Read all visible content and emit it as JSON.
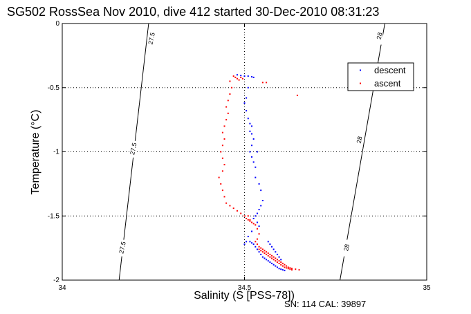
{
  "footer": "SN: 114  CAL: 39897",
  "chart_data": {
    "type": "scatter",
    "title": "SG502 RossSea Nov 2010, dive 412 started 30-Dec-2010 08:31:23",
    "xlabel": "Salinity (S [PSS-78])",
    "ylabel": "Temperature (°C)",
    "xlim": [
      34,
      35
    ],
    "ylim": [
      -2,
      0
    ],
    "xticks": [
      "34",
      "34.5",
      "35"
    ],
    "yticks": [
      "0",
      "-0.5",
      "-1",
      "-1.5",
      "-2"
    ],
    "grid": true,
    "legend_position": "top-right",
    "density_contours": [
      {
        "label": "27.5",
        "points": [
          [
            34.156,
            -2.0
          ],
          [
            34.237,
            0.0
          ]
        ]
      },
      {
        "label": "28",
        "points": [
          [
            34.762,
            -2.0
          ],
          [
            34.885,
            0.0
          ]
        ]
      }
    ],
    "density_labels": [
      {
        "text": "27.5",
        "x": 34.245,
        "y": -0.12
      },
      {
        "text": "27.5",
        "x": 34.195,
        "y": -0.98
      },
      {
        "text": "27.5",
        "x": 34.165,
        "y": -1.75
      },
      {
        "text": "28",
        "x": 34.87,
        "y": -0.1
      },
      {
        "text": "28",
        "x": 34.815,
        "y": -0.91
      },
      {
        "text": "28",
        "x": 34.78,
        "y": -1.75
      }
    ],
    "series": [
      {
        "name": "descent",
        "color": "#0000ff",
        "x": [
          34.48,
          34.49,
          34.5,
          34.51,
          34.52,
          34.525,
          34.51,
          34.505,
          34.5,
          34.505,
          34.51,
          34.515,
          34.52,
          34.515,
          34.52,
          34.525,
          34.52,
          34.515,
          34.52,
          34.525,
          34.53,
          34.535,
          34.53,
          34.54,
          34.545,
          34.55,
          34.545,
          34.54,
          34.535,
          34.53,
          34.525,
          34.535,
          34.54,
          34.52,
          34.51,
          34.505,
          34.5,
          34.515,
          34.52,
          34.525,
          34.53,
          34.535,
          34.54,
          34.545,
          34.55,
          34.555,
          34.56,
          34.565,
          34.57,
          34.575,
          34.58,
          34.585,
          34.59,
          34.595,
          34.6,
          34.605,
          34.61,
          34.565,
          34.57,
          34.575,
          34.58,
          34.585,
          34.59,
          34.595,
          34.6
        ],
        "y": [
          -0.4,
          -0.405,
          -0.41,
          -0.41,
          -0.415,
          -0.42,
          -0.5,
          -0.58,
          -0.62,
          -0.68,
          -0.74,
          -0.78,
          -0.8,
          -0.84,
          -0.86,
          -0.9,
          -0.95,
          -1.0,
          -1.04,
          -1.08,
          -1.12,
          -1.0,
          -1.2,
          -1.25,
          -1.3,
          -1.38,
          -1.42,
          -1.45,
          -1.48,
          -1.5,
          -1.52,
          -1.55,
          -1.58,
          -1.62,
          -1.66,
          -1.7,
          -1.72,
          -1.7,
          -1.71,
          -1.72,
          -1.74,
          -1.76,
          -1.78,
          -1.8,
          -1.82,
          -1.83,
          -1.84,
          -1.85,
          -1.86,
          -1.87,
          -1.88,
          -1.89,
          -1.9,
          -1.91,
          -1.915,
          -1.92,
          -1.925,
          -1.7,
          -1.72,
          -1.74,
          -1.76,
          -1.78,
          -1.8,
          -1.82,
          -1.84
        ]
      },
      {
        "name": "ascent",
        "color": "#ff0000",
        "x": [
          34.47,
          34.475,
          34.48,
          34.485,
          34.49,
          34.495,
          34.46,
          34.465,
          34.46,
          34.455,
          34.45,
          34.455,
          34.45,
          34.445,
          34.44,
          34.445,
          34.44,
          34.435,
          34.44,
          34.445,
          34.44,
          34.43,
          34.435,
          34.44,
          34.445,
          34.45,
          34.46,
          34.47,
          34.48,
          34.49,
          34.5,
          34.505,
          34.51,
          34.515,
          34.52,
          34.525,
          34.53,
          34.535,
          34.54,
          34.535,
          34.53,
          34.535,
          34.54,
          34.545,
          34.55,
          34.555,
          34.56,
          34.565,
          34.57,
          34.575,
          34.58,
          34.585,
          34.59,
          34.595,
          34.6,
          34.605,
          34.61,
          34.615,
          34.62,
          34.625,
          34.63,
          34.64,
          34.65,
          34.54,
          34.545,
          34.55,
          34.555,
          34.56,
          34.565,
          34.57,
          34.575,
          34.58,
          34.585,
          34.59,
          34.595,
          34.6,
          34.605,
          34.61,
          34.615,
          34.62,
          34.625,
          34.63,
          34.645,
          34.55,
          34.56,
          34.51,
          34.515
        ],
        "y": [
          -0.41,
          -0.42,
          -0.43,
          -0.44,
          -0.42,
          -0.43,
          -0.45,
          -0.5,
          -0.55,
          -0.6,
          -0.65,
          -0.7,
          -0.75,
          -0.8,
          -0.85,
          -0.9,
          -0.95,
          -1.0,
          -1.05,
          -1.1,
          -1.15,
          -1.2,
          -1.25,
          -1.3,
          -1.35,
          -1.4,
          -1.42,
          -1.44,
          -1.46,
          -1.48,
          -1.5,
          -1.52,
          -1.53,
          -1.54,
          -1.55,
          -1.56,
          -1.57,
          -1.6,
          -1.64,
          -1.68,
          -1.7,
          -1.72,
          -1.74,
          -1.75,
          -1.76,
          -1.77,
          -1.78,
          -1.79,
          -1.8,
          -1.81,
          -1.82,
          -1.83,
          -1.84,
          -1.85,
          -1.86,
          -1.87,
          -1.88,
          -1.89,
          -1.9,
          -1.905,
          -1.91,
          -1.915,
          -1.92,
          -1.76,
          -1.77,
          -1.78,
          -1.79,
          -1.8,
          -1.81,
          -1.82,
          -1.83,
          -1.84,
          -1.85,
          -1.86,
          -1.87,
          -1.88,
          -1.89,
          -1.9,
          -1.905,
          -1.91,
          -1.915,
          -1.92,
          -0.56,
          -0.46,
          -0.46,
          -1.5,
          -1.53
        ]
      }
    ]
  }
}
